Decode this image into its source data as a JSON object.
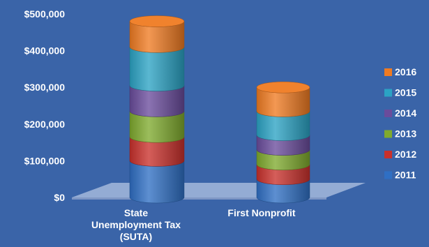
{
  "chart_data": {
    "type": "bar",
    "stacked": true,
    "style": "3d-cylinder",
    "categories": [
      "State Unemployment Tax (SUTA)",
      "First Nonprofit"
    ],
    "category_lines": [
      [
        "State",
        "Unemployment Tax",
        "(SUTA)"
      ],
      [
        "First Nonprofit"
      ]
    ],
    "series": [
      {
        "name": "2011",
        "values": [
          100000,
          50000
        ],
        "color": "#2f6fc4"
      },
      {
        "name": "2012",
        "values": [
          65000,
          40000
        ],
        "color": "#c9302c"
      },
      {
        "name": "2013",
        "values": [
          70000,
          40000
        ],
        "color": "#7faa2e"
      },
      {
        "name": "2014",
        "values": [
          70000,
          40000
        ],
        "color": "#6a4c9c"
      },
      {
        "name": "2015",
        "values": [
          105000,
          65000
        ],
        "color": "#2ba3c4"
      },
      {
        "name": "2016",
        "values": [
          70000,
          65000
        ],
        "color": "#ef7b22"
      }
    ],
    "ylim": [
      0,
      500000
    ],
    "yticks": [
      "$0",
      "$100,000",
      "$200,000",
      "$300,000",
      "$400,000",
      "$500,000"
    ],
    "yticks_values": [
      0,
      100000,
      200000,
      300000,
      400000,
      500000
    ],
    "legend": {
      "placement": "right",
      "order": [
        "2016",
        "2015",
        "2014",
        "2013",
        "2012",
        "2011"
      ]
    },
    "grid": false
  }
}
